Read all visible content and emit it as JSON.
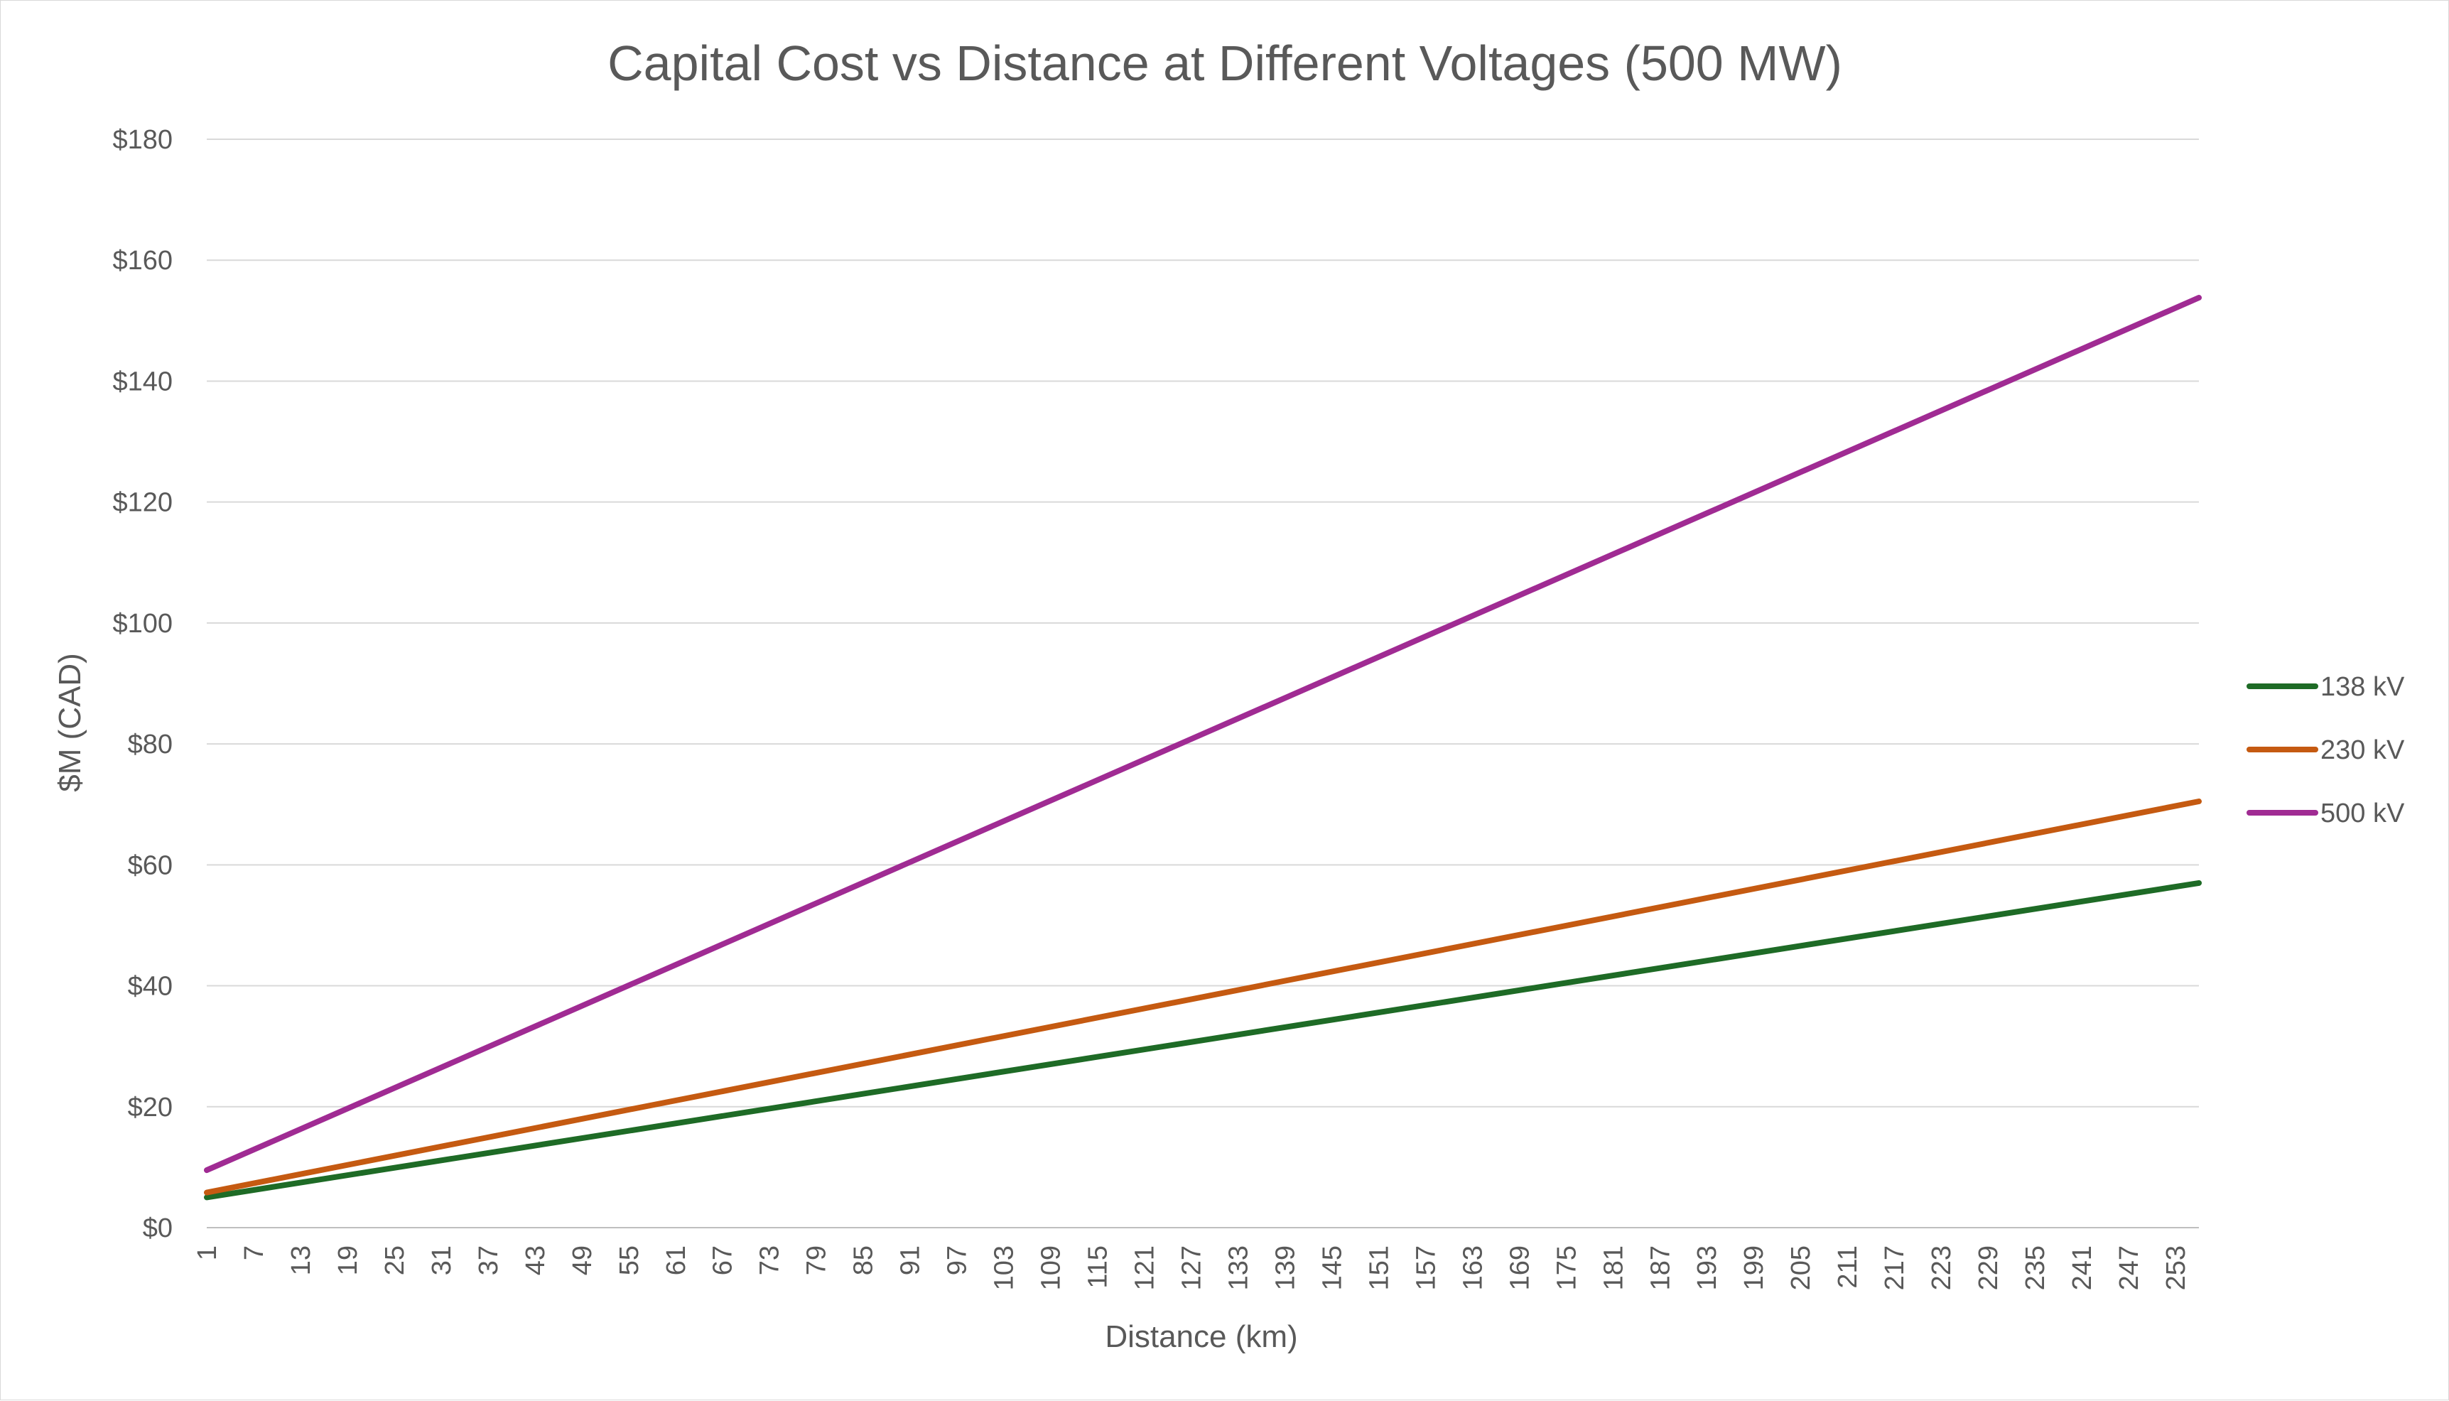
{
  "chart_data": {
    "type": "line",
    "title": "Capital Cost vs Distance at Different Voltages (500 MW)",
    "xlabel": "Distance (km)",
    "ylabel": "$M (CAD)",
    "x_range": [
      1,
      256
    ],
    "x_tick_labels": [
      "1",
      "7",
      "13",
      "19",
      "25",
      "31",
      "37",
      "43",
      "49",
      "55",
      "61",
      "67",
      "73",
      "79",
      "85",
      "91",
      "97",
      "103",
      "109",
      "115",
      "121",
      "127",
      "133",
      "139",
      "145",
      "151",
      "157",
      "163",
      "169",
      "175",
      "181",
      "187",
      "193",
      "199",
      "205",
      "211",
      "217",
      "223",
      "229",
      "235",
      "241",
      "247",
      "253"
    ],
    "ylim": [
      0,
      180
    ],
    "y_ticks": [
      0,
      20,
      40,
      60,
      80,
      100,
      120,
      140,
      160,
      180
    ],
    "y_tick_labels": [
      "$0",
      "$20",
      "$40",
      "$60",
      "$80",
      "$100",
      "$120",
      "$140",
      "$160",
      "$180"
    ],
    "grid": true,
    "legend_position": "right",
    "series": [
      {
        "name": "138 kV",
        "color": "#1e6b26",
        "x": [
          1,
          256
        ],
        "values": [
          5.0,
          57.0
        ]
      },
      {
        "name": "230 kV",
        "color": "#c55a11",
        "x": [
          1,
          256
        ],
        "values": [
          5.8,
          70.5
        ]
      },
      {
        "name": "500 kV",
        "color": "#a02b93",
        "x": [
          1,
          256
        ],
        "values": [
          9.5,
          153.8
        ]
      }
    ]
  }
}
